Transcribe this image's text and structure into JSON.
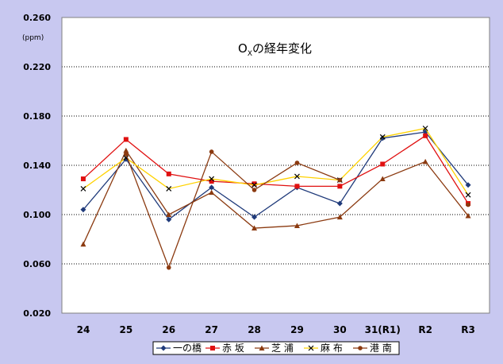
{
  "chart_data": {
    "type": "line",
    "title": "O",
    "title_sub": "X",
    "title_rest": "の経年変化",
    "ylabel": "(ppm)",
    "xlabel": "",
    "categories": [
      "24",
      "25",
      "26",
      "27",
      "28",
      "29",
      "30",
      "31(R1)",
      "R2",
      "R3"
    ],
    "y_ticks": [
      "0.020",
      "0.060",
      "0.100",
      "0.140",
      "0.180",
      "0.220",
      "0.260"
    ],
    "ylim": [
      0.02,
      0.26
    ],
    "grid": "horizontal dotted",
    "legend_position": "bottom",
    "series": [
      {
        "name": "一の橋",
        "color": "#1f3a7a",
        "marker": "diamond",
        "values": [
          0.104,
          0.145,
          0.096,
          0.122,
          0.098,
          0.122,
          0.109,
          0.162,
          0.167,
          0.124
        ]
      },
      {
        "name": "赤 坂",
        "color": "#e01010",
        "marker": "square",
        "values": [
          0.129,
          0.161,
          0.133,
          0.127,
          0.125,
          0.123,
          0.123,
          0.141,
          0.164,
          0.109
        ]
      },
      {
        "name": "芝 浦",
        "color": "#8b3a10",
        "marker": "triangle",
        "values": [
          0.076,
          0.152,
          0.1,
          0.118,
          0.089,
          0.091,
          0.098,
          0.129,
          0.143,
          0.099
        ]
      },
      {
        "name": "麻 布",
        "color": "#ffd200",
        "marker": "x",
        "values": [
          0.121,
          0.146,
          0.121,
          0.129,
          0.124,
          0.131,
          0.128,
          0.163,
          0.17,
          0.116
        ]
      },
      {
        "name": "港 南",
        "color": "#8b3a10",
        "marker": "circle",
        "values": [
          null,
          0.149,
          0.057,
          0.151,
          0.12,
          0.142,
          0.128,
          null,
          null,
          0.108
        ]
      }
    ]
  }
}
